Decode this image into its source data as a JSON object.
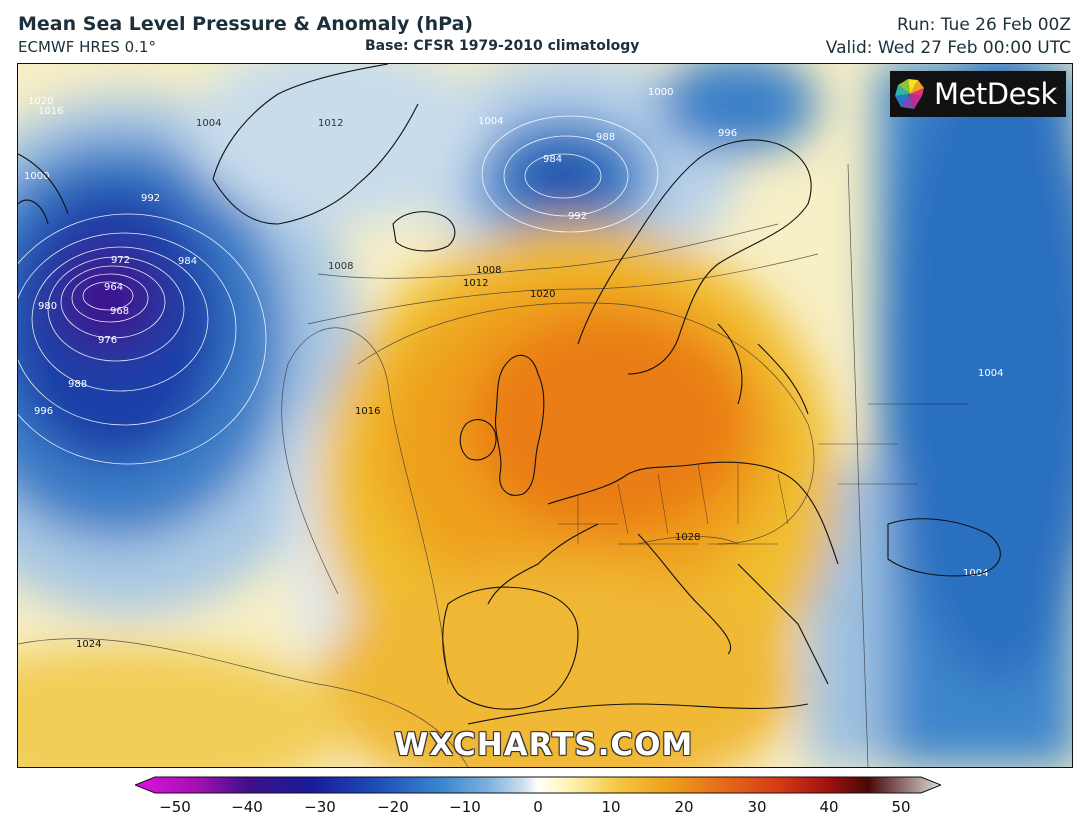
{
  "header": {
    "title": "Mean Sea Level Pressure & Anomaly (hPa)",
    "model": "ECMWF HRES 0.1°",
    "base": "Base: CFSR 1979-2010 climatology",
    "run": "Run: Tue 26 Feb 00Z",
    "valid": "Valid: Wed 27 Feb 00:00 UTC"
  },
  "logo": {
    "text": "MetDesk"
  },
  "watermark": "WXCHARTS.COM",
  "isobars": {
    "low_center_labels": [
      "964",
      "968",
      "972",
      "976",
      "980",
      "984",
      "988",
      "992",
      "996",
      "1000",
      "1004",
      "1008",
      "1012",
      "1016",
      "1020",
      "1024"
    ],
    "northern_low_labels": [
      "984",
      "988",
      "992",
      "996",
      "1000",
      "1004"
    ],
    "high_labels": [
      "1008",
      "1012",
      "1016",
      "1020",
      "1024",
      "1028"
    ],
    "east_labels": [
      "1004",
      "1004"
    ]
  },
  "colorbar": {
    "min": -50,
    "max": 50,
    "ticks": [
      "−50",
      "−40",
      "−30",
      "−20",
      "−10",
      "0",
      "10",
      "20",
      "30",
      "40",
      "50"
    ],
    "colors": [
      "#e010e0",
      "#a010b0",
      "#40108a",
      "#1a1a9a",
      "#1e4db8",
      "#3a86d0",
      "#7fb3de",
      "#c9ddec",
      "#ffffff",
      "#fff3b0",
      "#f4c542",
      "#eda21a",
      "#e8711a",
      "#d43a14",
      "#a01010",
      "#4a0808",
      "#bbbbbb"
    ]
  }
}
